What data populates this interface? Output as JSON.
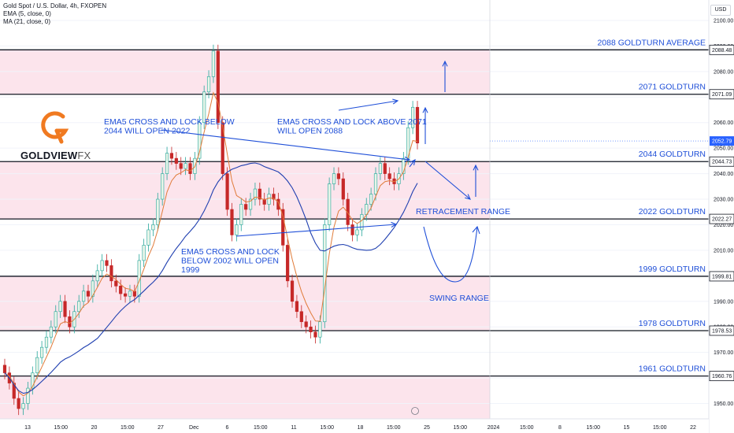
{
  "header": {
    "symbol_line": "Gold Spot / U.S. Dollar, 4h, FXOPEN",
    "ema_line": "EMA (5, close, 0)",
    "ma_line": "MA (21, close, 0)",
    "currency": "USD"
  },
  "logo": {
    "brand": "GOLDVIEW",
    "suffix": "FX"
  },
  "chart_data": {
    "type": "candlestick",
    "instrument": "Gold Spot / U.S. Dollar",
    "timeframe": "4h",
    "ylim": [
      1944,
      2108
    ],
    "y_ticks": [
      1950,
      1960,
      1970,
      1980,
      1990,
      2000,
      2010,
      2020,
      2030,
      2040,
      2050,
      2060,
      2070,
      2080,
      2090,
      2100
    ],
    "x_ticks": [
      "13",
      "15:00",
      "20",
      "15:00",
      "27",
      "Dec",
      "6",
      "15:00",
      "11",
      "15:00",
      "18",
      "15:00",
      "25",
      "15:00",
      "2024",
      "15:00",
      "8",
      "15:00",
      "15",
      "15:00",
      "22"
    ],
    "levels": [
      {
        "label": "2088 GOLDTURN AVERAGE",
        "value": 2088.48,
        "tag": "2088.48"
      },
      {
        "label": "2071 GOLDTURN",
        "value": 2071.09,
        "tag": "2071.09"
      },
      {
        "label": "2044 GOLDTURN",
        "value": 2044.73,
        "tag": "2044.73"
      },
      {
        "label": "2022 GOLDTURN",
        "value": 2022.27,
        "tag": "2022.27"
      },
      {
        "label": "1999 GOLDTURN",
        "value": 1999.81,
        "tag": "1999.81"
      },
      {
        "label": "1978 GOLDTURN",
        "value": 1978.53,
        "tag": "1978.53"
      },
      {
        "label": "1961 GOLDTURN",
        "value": 1960.76,
        "tag": "1960.76"
      }
    ],
    "zones": [
      {
        "from": 2071.09,
        "to": 2088.48
      },
      {
        "from": 2022.27,
        "to": 2044.73
      },
      {
        "from": 1978.53,
        "to": 1999.81
      },
      {
        "from": 1944,
        "to": 1960.76
      }
    ],
    "last_price": {
      "value": 2052.79,
      "tag": "2052.79"
    },
    "annotations": [
      {
        "lines": [
          "EMA5 CROSS AND LOCK BELOW",
          "2044 WILL OPEN 2022"
        ]
      },
      {
        "lines": [
          "EMA5 CROSS AND LOCK ABOVE 2071",
          "WILL OPEN 2088"
        ]
      },
      {
        "lines": [
          "EMA5 CROSS AND LOCK",
          "BELOW 2002 WILL OPEN",
          "1999"
        ]
      },
      {
        "lines": [
          "RETRACEMENT RANGE"
        ]
      },
      {
        "lines": [
          "SWING RANGE"
        ]
      }
    ],
    "closes": [
      1962,
      1958,
      1952,
      1948,
      1950,
      1956,
      1962,
      1968,
      1972,
      1976,
      1980,
      1986,
      1990,
      1984,
      1980,
      1986,
      1990,
      1994,
      1992,
      1998,
      2002,
      2006,
      2004,
      1998,
      1996,
      1993,
      1992,
      1994,
      1992,
      2006,
      2012,
      2018,
      2020,
      2030,
      2040,
      2048,
      2046,
      2044,
      2042,
      2044,
      2040,
      2046,
      2060,
      2072,
      2078,
      2088,
      2060,
      2040,
      2026,
      2016,
      2020,
      2028,
      2026,
      2030,
      2034,
      2030,
      2028,
      2032,
      2030,
      2026,
      2012,
      1998,
      1990,
      1986,
      1982,
      1980,
      1978,
      1976,
      1982,
      2020,
      2036,
      2040,
      2038,
      2030,
      2020,
      2016,
      2018,
      2024,
      2028,
      2032,
      2040,
      2044,
      2040,
      2038,
      2036,
      2040,
      2046,
      2058,
      2066,
      2052
    ],
    "ema5_note": "EMA (5, close, 0)",
    "ma21_note": "MA (21, close, 0)"
  }
}
